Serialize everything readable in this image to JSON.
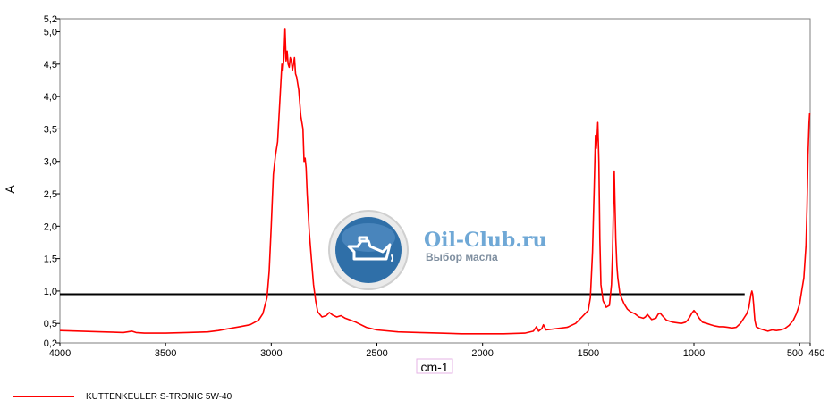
{
  "chart_data": {
    "type": "line",
    "xlabel": "cm-1",
    "ylabel": "A",
    "x_reversed": true,
    "xlim": [
      4000,
      450
    ],
    "ylim": [
      0.2,
      5.2
    ],
    "x_ticks": [
      {
        "value": 4000,
        "label": "4000"
      },
      {
        "value": 3500,
        "label": "3500"
      },
      {
        "value": 3000,
        "label": "3000"
      },
      {
        "value": 2500,
        "label": "2500"
      },
      {
        "value": 2000,
        "label": "2000"
      },
      {
        "value": 1500,
        "label": "1500"
      },
      {
        "value": 1000,
        "label": "1000"
      },
      {
        "value": 500,
        "label": "500"
      },
      {
        "value": 450,
        "label": "450"
      }
    ],
    "y_ticks": [
      {
        "value": 0.2,
        "label": "0,2"
      },
      {
        "value": 0.5,
        "label": "0,5"
      },
      {
        "value": 1.0,
        "label": "1,0"
      },
      {
        "value": 1.5,
        "label": "1,5"
      },
      {
        "value": 2.0,
        "label": "2,0"
      },
      {
        "value": 2.5,
        "label": "2,5"
      },
      {
        "value": 3.0,
        "label": "3,0"
      },
      {
        "value": 3.5,
        "label": "3,5"
      },
      {
        "value": 4.0,
        "label": "4,0"
      },
      {
        "value": 4.5,
        "label": "4,5"
      },
      {
        "value": 5.0,
        "label": "5,0"
      },
      {
        "value": 5.2,
        "label": "5,2"
      }
    ],
    "grid": false,
    "legend_position": "bottom-left",
    "reference_line": {
      "y": 0.95,
      "x_from": 4000,
      "x_to": 760,
      "color": "#000000"
    },
    "series": [
      {
        "name": "KUTTENKEULER S-TRONIC 5W-40",
        "color": "#ff0000",
        "points": [
          [
            4000,
            0.39
          ],
          [
            3900,
            0.38
          ],
          [
            3800,
            0.37
          ],
          [
            3700,
            0.36
          ],
          [
            3660,
            0.38
          ],
          [
            3640,
            0.36
          ],
          [
            3600,
            0.35
          ],
          [
            3500,
            0.35
          ],
          [
            3400,
            0.36
          ],
          [
            3300,
            0.37
          ],
          [
            3250,
            0.39
          ],
          [
            3200,
            0.42
          ],
          [
            3150,
            0.45
          ],
          [
            3100,
            0.48
          ],
          [
            3060,
            0.55
          ],
          [
            3040,
            0.65
          ],
          [
            3020,
            0.9
          ],
          [
            3010,
            1.3
          ],
          [
            3000,
            2.0
          ],
          [
            2990,
            2.8
          ],
          [
            2980,
            3.1
          ],
          [
            2970,
            3.3
          ],
          [
            2960,
            3.9
          ],
          [
            2950,
            4.5
          ],
          [
            2945,
            4.4
          ],
          [
            2940,
            4.6
          ],
          [
            2935,
            5.05
          ],
          [
            2930,
            4.55
          ],
          [
            2925,
            4.7
          ],
          [
            2920,
            4.5
          ],
          [
            2915,
            4.45
          ],
          [
            2910,
            4.6
          ],
          [
            2905,
            4.55
          ],
          [
            2900,
            4.4
          ],
          [
            2895,
            4.5
          ],
          [
            2890,
            4.6
          ],
          [
            2885,
            4.35
          ],
          [
            2880,
            4.3
          ],
          [
            2870,
            4.1
          ],
          [
            2860,
            3.7
          ],
          [
            2850,
            3.5
          ],
          [
            2845,
            3.0
          ],
          [
            2840,
            3.05
          ],
          [
            2835,
            2.9
          ],
          [
            2830,
            2.5
          ],
          [
            2820,
            1.9
          ],
          [
            2810,
            1.5
          ],
          [
            2800,
            1.1
          ],
          [
            2790,
            0.85
          ],
          [
            2780,
            0.68
          ],
          [
            2760,
            0.6
          ],
          [
            2740,
            0.62
          ],
          [
            2725,
            0.67
          ],
          [
            2710,
            0.63
          ],
          [
            2690,
            0.6
          ],
          [
            2670,
            0.62
          ],
          [
            2650,
            0.58
          ],
          [
            2600,
            0.52
          ],
          [
            2550,
            0.44
          ],
          [
            2500,
            0.4
          ],
          [
            2400,
            0.37
          ],
          [
            2300,
            0.36
          ],
          [
            2200,
            0.35
          ],
          [
            2100,
            0.34
          ],
          [
            2000,
            0.34
          ],
          [
            1900,
            0.34
          ],
          [
            1800,
            0.35
          ],
          [
            1760,
            0.38
          ],
          [
            1745,
            0.45
          ],
          [
            1735,
            0.38
          ],
          [
            1720,
            0.42
          ],
          [
            1712,
            0.48
          ],
          [
            1700,
            0.4
          ],
          [
            1650,
            0.42
          ],
          [
            1600,
            0.44
          ],
          [
            1560,
            0.5
          ],
          [
            1530,
            0.6
          ],
          [
            1500,
            0.7
          ],
          [
            1490,
            0.9
          ],
          [
            1480,
            1.6
          ],
          [
            1472,
            2.6
          ],
          [
            1466,
            3.4
          ],
          [
            1462,
            3.2
          ],
          [
            1458,
            3.4
          ],
          [
            1455,
            3.6
          ],
          [
            1450,
            3.0
          ],
          [
            1445,
            1.8
          ],
          [
            1440,
            1.1
          ],
          [
            1430,
            0.85
          ],
          [
            1415,
            0.75
          ],
          [
            1400,
            0.78
          ],
          [
            1390,
            1.1
          ],
          [
            1385,
            1.6
          ],
          [
            1380,
            2.45
          ],
          [
            1377,
            2.85
          ],
          [
            1374,
            2.4
          ],
          [
            1370,
            1.8
          ],
          [
            1365,
            1.4
          ],
          [
            1360,
            1.2
          ],
          [
            1350,
            0.95
          ],
          [
            1330,
            0.8
          ],
          [
            1315,
            0.72
          ],
          [
            1300,
            0.68
          ],
          [
            1280,
            0.65
          ],
          [
            1260,
            0.6
          ],
          [
            1240,
            0.58
          ],
          [
            1230,
            0.6
          ],
          [
            1220,
            0.64
          ],
          [
            1200,
            0.56
          ],
          [
            1180,
            0.58
          ],
          [
            1170,
            0.64
          ],
          [
            1160,
            0.66
          ],
          [
            1150,
            0.62
          ],
          [
            1130,
            0.55
          ],
          [
            1100,
            0.52
          ],
          [
            1060,
            0.5
          ],
          [
            1040,
            0.52
          ],
          [
            1030,
            0.55
          ],
          [
            1020,
            0.6
          ],
          [
            1010,
            0.66
          ],
          [
            1000,
            0.7
          ],
          [
            990,
            0.66
          ],
          [
            975,
            0.58
          ],
          [
            960,
            0.52
          ],
          [
            940,
            0.5
          ],
          [
            920,
            0.48
          ],
          [
            900,
            0.46
          ],
          [
            880,
            0.45
          ],
          [
            860,
            0.45
          ],
          [
            840,
            0.44
          ],
          [
            820,
            0.43
          ],
          [
            800,
            0.44
          ],
          [
            790,
            0.47
          ],
          [
            780,
            0.5
          ],
          [
            770,
            0.55
          ],
          [
            760,
            0.6
          ],
          [
            750,
            0.65
          ],
          [
            740,
            0.75
          ],
          [
            735,
            0.85
          ],
          [
            730,
            0.95
          ],
          [
            726,
            1.0
          ],
          [
            722,
            0.95
          ],
          [
            718,
            0.8
          ],
          [
            712,
            0.55
          ],
          [
            705,
            0.45
          ],
          [
            690,
            0.42
          ],
          [
            670,
            0.4
          ],
          [
            650,
            0.38
          ],
          [
            630,
            0.4
          ],
          [
            610,
            0.39
          ],
          [
            590,
            0.4
          ],
          [
            570,
            0.42
          ],
          [
            550,
            0.47
          ],
          [
            530,
            0.55
          ],
          [
            515,
            0.65
          ],
          [
            500,
            0.8
          ],
          [
            490,
            1.0
          ],
          [
            480,
            1.2
          ],
          [
            470,
            1.7
          ],
          [
            465,
            2.3
          ],
          [
            460,
            3.1
          ],
          [
            455,
            3.6
          ],
          [
            452,
            3.75
          ]
        ]
      }
    ]
  },
  "watermark": {
    "title": "Oil-Club.ru",
    "subtitle": "Выбор масла",
    "icon": "oil-can-icon",
    "brand_color": "#6fa8d6",
    "badge_color": "#2f6fa8"
  }
}
